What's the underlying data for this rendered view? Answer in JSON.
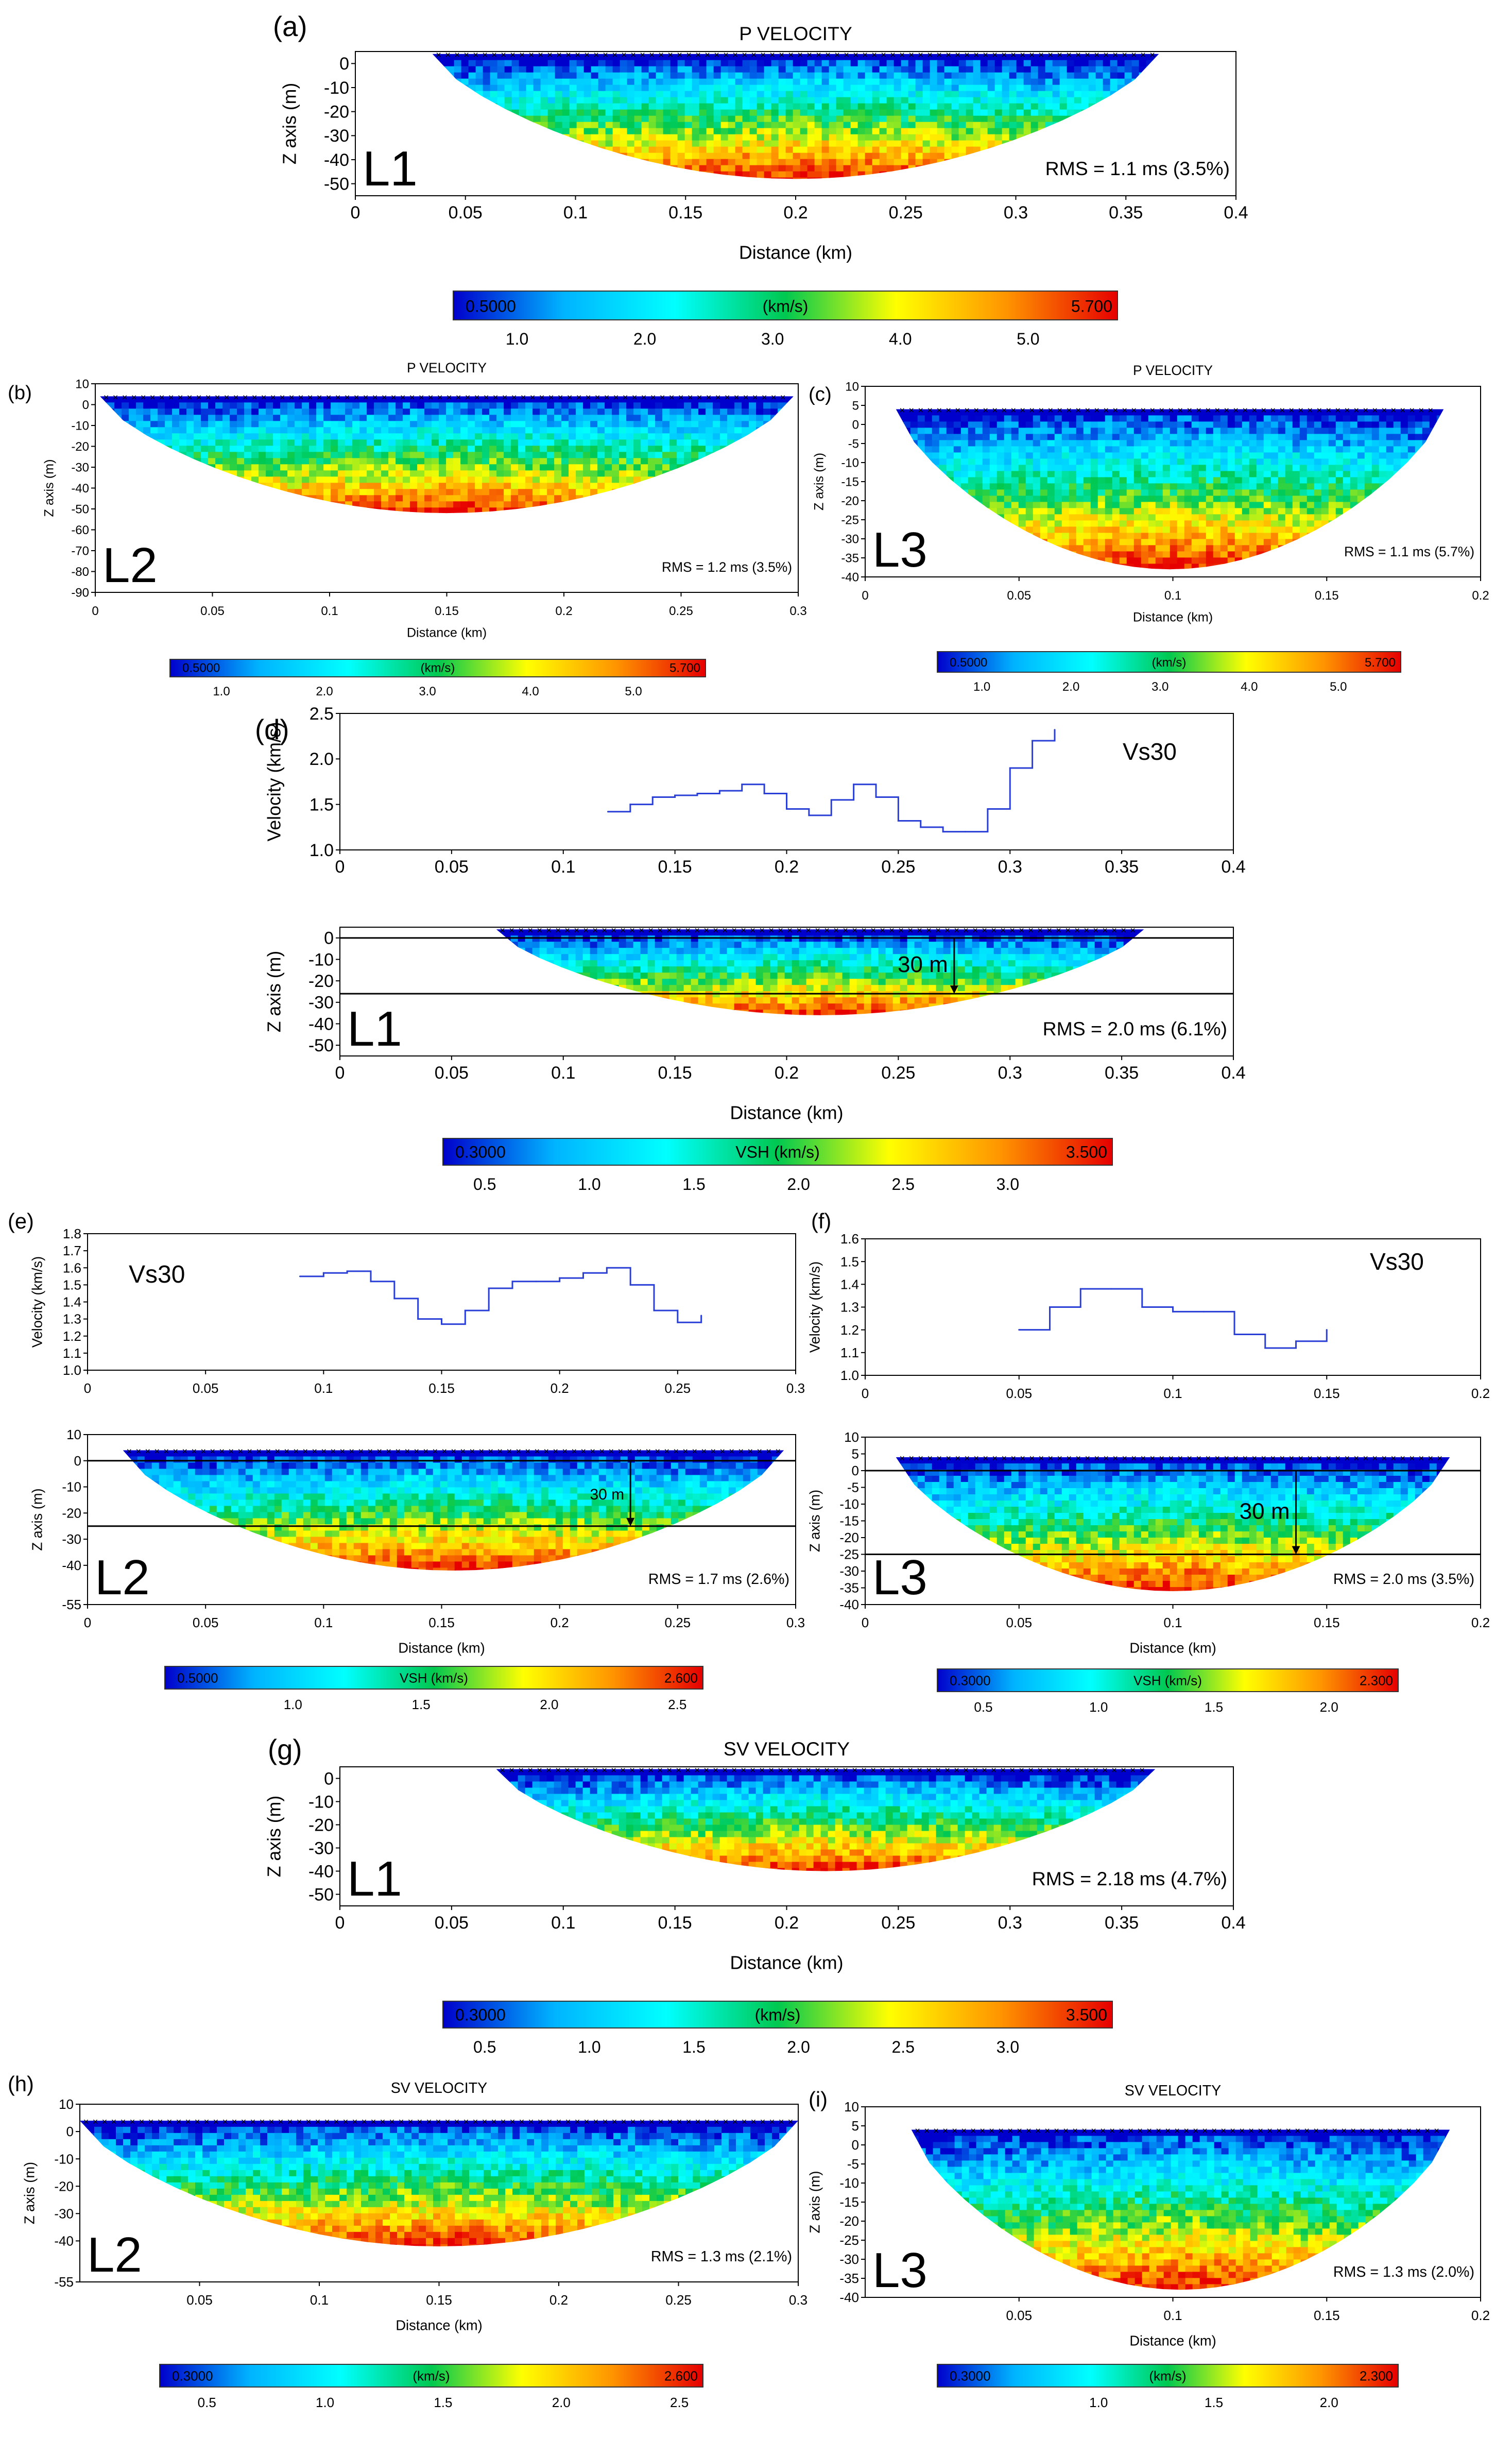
{
  "figure": {
    "panel_count": 9
  },
  "color_stops": [
    "#0000cc",
    "#00b4ff",
    "#00ffff",
    "#00c850",
    "#ffff00",
    "#ff9400",
    "#e60000"
  ],
  "chart_data": [
    {
      "id": "a",
      "panel_label": "(a)",
      "type": "heatmap",
      "title": "P VELOCITY",
      "line_label": "L1",
      "rms": "RMS = 1.1 ms (3.5%)",
      "xlabel": "Distance (km)",
      "ylabel": "Z axis (m)",
      "xlim": [
        0,
        0.4
      ],
      "ylim": [
        -55,
        5
      ],
      "xticks": [
        "0",
        "0.05",
        "0.1",
        "0.15",
        "0.2",
        "0.25",
        "0.3",
        "0.35",
        "0.4"
      ],
      "yticks": [
        "0",
        "-10",
        "-20",
        "-30",
        "-40",
        "-50"
      ],
      "coverage": {
        "x_start": 0.035,
        "x_end": 0.365,
        "max_depth": 48
      },
      "colorbar": {
        "unit": "(km/s)",
        "min": "0.5000",
        "max": "5.700",
        "ticks": [
          "1.0",
          "2.0",
          "3.0",
          "4.0",
          "5.0"
        ]
      }
    },
    {
      "id": "b",
      "panel_label": "(b)",
      "type": "heatmap",
      "title": "P VELOCITY",
      "line_label": "L2",
      "rms": "RMS = 1.2 ms (3.5%)",
      "xlabel": "Distance (km)",
      "ylabel": "Z axis (m)",
      "xlim": [
        0,
        0.3
      ],
      "ylim": [
        -90,
        10
      ],
      "xticks": [
        "0",
        "0.05",
        "0.1",
        "0.15",
        "0.2",
        "0.25",
        "0.3"
      ],
      "yticks": [
        "10",
        "0",
        "-10",
        "-20",
        "-30",
        "-40",
        "-50",
        "-60",
        "-70",
        "-80",
        "-90"
      ],
      "coverage": {
        "x_start": 0.002,
        "x_end": 0.298,
        "max_depth": 52
      },
      "colorbar": {
        "unit": "(km/s)",
        "min": "0.5000",
        "max": "5.700",
        "ticks": [
          "1.0",
          "2.0",
          "3.0",
          "4.0",
          "5.0"
        ]
      }
    },
    {
      "id": "c",
      "panel_label": "(c)",
      "type": "heatmap",
      "title": "P VELOCITY",
      "line_label": "L3",
      "rms": "RMS = 1.1 ms (5.7%)",
      "xlabel": "Distance (km)",
      "ylabel": "Z axis (m)",
      "xlim": [
        0,
        0.2
      ],
      "ylim": [
        -40,
        10
      ],
      "xticks": [
        "0",
        "0.05",
        "0.1",
        "0.15",
        "0.2"
      ],
      "yticks": [
        "10",
        "5",
        "0",
        "-5",
        "-10",
        "-15",
        "-20",
        "-25",
        "-30",
        "-35",
        "-40"
      ],
      "coverage": {
        "x_start": 0.01,
        "x_end": 0.188,
        "max_depth": 38
      },
      "colorbar": {
        "unit": "(km/s)",
        "min": "0.5000",
        "max": "5.700",
        "ticks": [
          "1.0",
          "2.0",
          "3.0",
          "4.0",
          "5.0"
        ]
      }
    },
    {
      "id": "d_vs30",
      "panel_label": "(d)",
      "type": "line",
      "annotation": "Vs30",
      "ylabel": "Velocity (km/s)",
      "xlim": [
        0,
        0.4
      ],
      "ylim": [
        1.0,
        2.5
      ],
      "xticks": [
        "0",
        "0.05",
        "0.1",
        "0.15",
        "0.2",
        "0.25",
        "0.3",
        "0.35",
        "0.4"
      ],
      "yticks": [
        "1.0",
        "1.5",
        "2.0",
        "2.5"
      ],
      "x": [
        0.12,
        0.13,
        0.14,
        0.15,
        0.16,
        0.17,
        0.18,
        0.19,
        0.2,
        0.21,
        0.22,
        0.23,
        0.24,
        0.25,
        0.26,
        0.27,
        0.28,
        0.29,
        0.3,
        0.31,
        0.32
      ],
      "values": [
        1.42,
        1.5,
        1.58,
        1.6,
        1.62,
        1.65,
        1.72,
        1.62,
        1.45,
        1.38,
        1.55,
        1.72,
        1.58,
        1.32,
        1.25,
        1.2,
        1.2,
        1.45,
        1.9,
        2.2,
        2.32
      ]
    },
    {
      "id": "d_section",
      "type": "heatmap",
      "line_label": "L1",
      "rms": "RMS = 2.0 ms (6.1%)",
      "annotation": "30 m",
      "xlabel": "Distance (km)",
      "ylabel": "Z axis (m)",
      "xlim": [
        0,
        0.4
      ],
      "ylim": [
        -55,
        5
      ],
      "xticks": [
        "0",
        "0.05",
        "0.1",
        "0.15",
        "0.2",
        "0.25",
        "0.3",
        "0.35",
        "0.4"
      ],
      "yticks": [
        "0",
        "-10",
        "-20",
        "-30",
        "-40",
        "-50"
      ],
      "coverage": {
        "x_start": 0.07,
        "x_end": 0.36,
        "max_depth": 36
      },
      "ref_depth": -26,
      "arrow_x": 0.275,
      "colorbar": {
        "unit": "VSH (km/s)",
        "min": "0.3000",
        "max": "3.500",
        "ticks": [
          "0.5",
          "1.0",
          "1.5",
          "2.0",
          "2.5",
          "3.0"
        ]
      }
    },
    {
      "id": "e_vs30",
      "panel_label": "(e)",
      "type": "line",
      "annotation": "Vs30",
      "ylabel": "Velocity (km/s)",
      "xlim": [
        0,
        0.3
      ],
      "ylim": [
        1.0,
        1.8
      ],
      "xticks": [
        "0",
        "0.05",
        "0.1",
        "0.15",
        "0.2",
        "0.25",
        "0.3"
      ],
      "yticks": [
        "1.0",
        "1.1",
        "1.2",
        "1.3",
        "1.4",
        "1.5",
        "1.6",
        "1.7",
        "1.8"
      ],
      "x": [
        0.09,
        0.1,
        0.11,
        0.12,
        0.13,
        0.14,
        0.15,
        0.16,
        0.17,
        0.18,
        0.19,
        0.2,
        0.21,
        0.22,
        0.23,
        0.24,
        0.25,
        0.26
      ],
      "values": [
        1.55,
        1.57,
        1.58,
        1.52,
        1.42,
        1.3,
        1.27,
        1.35,
        1.48,
        1.52,
        1.52,
        1.54,
        1.57,
        1.6,
        1.5,
        1.35,
        1.28,
        1.32
      ]
    },
    {
      "id": "e_section",
      "type": "heatmap",
      "line_label": "L2",
      "rms": "RMS = 1.7 ms (2.6%)",
      "annotation": "30 m",
      "xlabel": "Distance (km)",
      "ylabel": "Z axis (m)",
      "xlim": [
        0,
        0.3
      ],
      "ylim": [
        -55,
        10
      ],
      "xticks": [
        "0",
        "0.05",
        "0.1",
        "0.15",
        "0.2",
        "0.25",
        "0.3"
      ],
      "yticks": [
        "10",
        "0",
        "-10",
        "-20",
        "-30",
        "-40",
        "-55"
      ],
      "coverage": {
        "x_start": 0.015,
        "x_end": 0.295,
        "max_depth": 42
      },
      "ref_depth": -25,
      "arrow_x": 0.23,
      "colorbar": {
        "unit": "VSH (km/s)",
        "min": "0.5000",
        "max": "2.600",
        "ticks": [
          "1.0",
          "1.5",
          "2.0",
          "2.5"
        ]
      }
    },
    {
      "id": "f_vs30",
      "panel_label": "(f)",
      "type": "line",
      "annotation": "Vs30",
      "ylabel": "Velocity (km/s)",
      "xlim": [
        0,
        0.2
      ],
      "ylim": [
        1.0,
        1.6
      ],
      "xticks": [
        "0",
        "0.05",
        "0.1",
        "0.15",
        "0.2"
      ],
      "yticks": [
        "1.0",
        "1.1",
        "1.2",
        "1.3",
        "1.4",
        "1.5",
        "1.6"
      ],
      "x": [
        0.05,
        0.06,
        0.07,
        0.08,
        0.09,
        0.1,
        0.11,
        0.12,
        0.13,
        0.14,
        0.15
      ],
      "values": [
        1.2,
        1.3,
        1.38,
        1.38,
        1.3,
        1.28,
        1.28,
        1.18,
        1.12,
        1.15,
        1.2
      ]
    },
    {
      "id": "f_section",
      "type": "heatmap",
      "line_label": "L3",
      "rms": "RMS = 2.0 ms (3.5%)",
      "annotation": "30 m",
      "xlabel": "Distance (km)",
      "ylabel": "Z axis (m)",
      "xlim": [
        0,
        0.2
      ],
      "ylim": [
        -40,
        10
      ],
      "xticks": [
        "0",
        "0.05",
        "0.1",
        "0.15",
        "0.2"
      ],
      "yticks": [
        "10",
        "5",
        "0",
        "-5",
        "-10",
        "-15",
        "-20",
        "-25",
        "-30",
        "-35",
        "-40"
      ],
      "coverage": {
        "x_start": 0.01,
        "x_end": 0.19,
        "max_depth": 36
      },
      "ref_depth": -25,
      "arrow_x": 0.14,
      "colorbar": {
        "unit": "VSH (km/s)",
        "min": "0.3000",
        "max": "2.300",
        "ticks": [
          "0.5",
          "1.0",
          "1.5",
          "2.0"
        ]
      }
    },
    {
      "id": "g",
      "panel_label": "(g)",
      "type": "heatmap",
      "title": "SV VELOCITY",
      "line_label": "L1",
      "rms": "RMS = 2.18 ms (4.7%)",
      "xlabel": "Distance (km)",
      "ylabel": "Z axis (m)",
      "xlim": [
        0,
        0.4
      ],
      "ylim": [
        -55,
        5
      ],
      "xticks": [
        "0",
        "0.05",
        "0.1",
        "0.15",
        "0.2",
        "0.25",
        "0.3",
        "0.35",
        "0.4"
      ],
      "yticks": [
        "0",
        "-10",
        "-20",
        "-30",
        "-40",
        "-50"
      ],
      "coverage": {
        "x_start": 0.07,
        "x_end": 0.365,
        "max_depth": 40
      },
      "colorbar": {
        "unit": "(km/s)",
        "min": "0.3000",
        "max": "3.500",
        "ticks": [
          "0.5",
          "1.0",
          "1.5",
          "2.0",
          "2.5",
          "3.0"
        ]
      }
    },
    {
      "id": "h",
      "panel_label": "(h)",
      "type": "heatmap",
      "title": "SV VELOCITY",
      "line_label": "L2",
      "rms": "RMS = 1.3 ms (2.1%)",
      "xlabel": "Distance (km)",
      "ylabel": "Z axis (m)",
      "xlim": [
        0,
        0.3
      ],
      "ylim": [
        -55,
        10
      ],
      "xticks": [
        "0.05",
        "0.1",
        "0.15",
        "0.2",
        "0.25",
        "0.3"
      ],
      "yticks": [
        "10",
        "0",
        "-10",
        "-20",
        "-30",
        "-40",
        "-55"
      ],
      "coverage": {
        "x_start": 0.0,
        "x_end": 0.3,
        "max_depth": 42
      },
      "colorbar": {
        "unit": "(km/s)",
        "min": "0.3000",
        "max": "2.600",
        "ticks": [
          "0.5",
          "1.0",
          "1.5",
          "2.0",
          "2.5"
        ]
      }
    },
    {
      "id": "i",
      "panel_label": "(i)",
      "type": "heatmap",
      "title": "SV VELOCITY",
      "line_label": "L3",
      "rms": "RMS = 1.3 ms (2.0%)",
      "xlabel": "Distance (km)",
      "ylabel": "Z axis (m)",
      "xlim": [
        0,
        0.2
      ],
      "ylim": [
        -40,
        10
      ],
      "xticks": [
        "0.05",
        "0.1",
        "0.15",
        "0.2"
      ],
      "yticks": [
        "10",
        "5",
        "0",
        "-5",
        "-10",
        "-15",
        "-20",
        "-25",
        "-30",
        "-35",
        "-40"
      ],
      "coverage": {
        "x_start": 0.015,
        "x_end": 0.19,
        "max_depth": 38
      },
      "colorbar": {
        "unit": "(km/s)",
        "min": "0.3000",
        "max": "2.300",
        "ticks": [
          "1.0",
          "1.5",
          "2.0"
        ]
      }
    }
  ]
}
